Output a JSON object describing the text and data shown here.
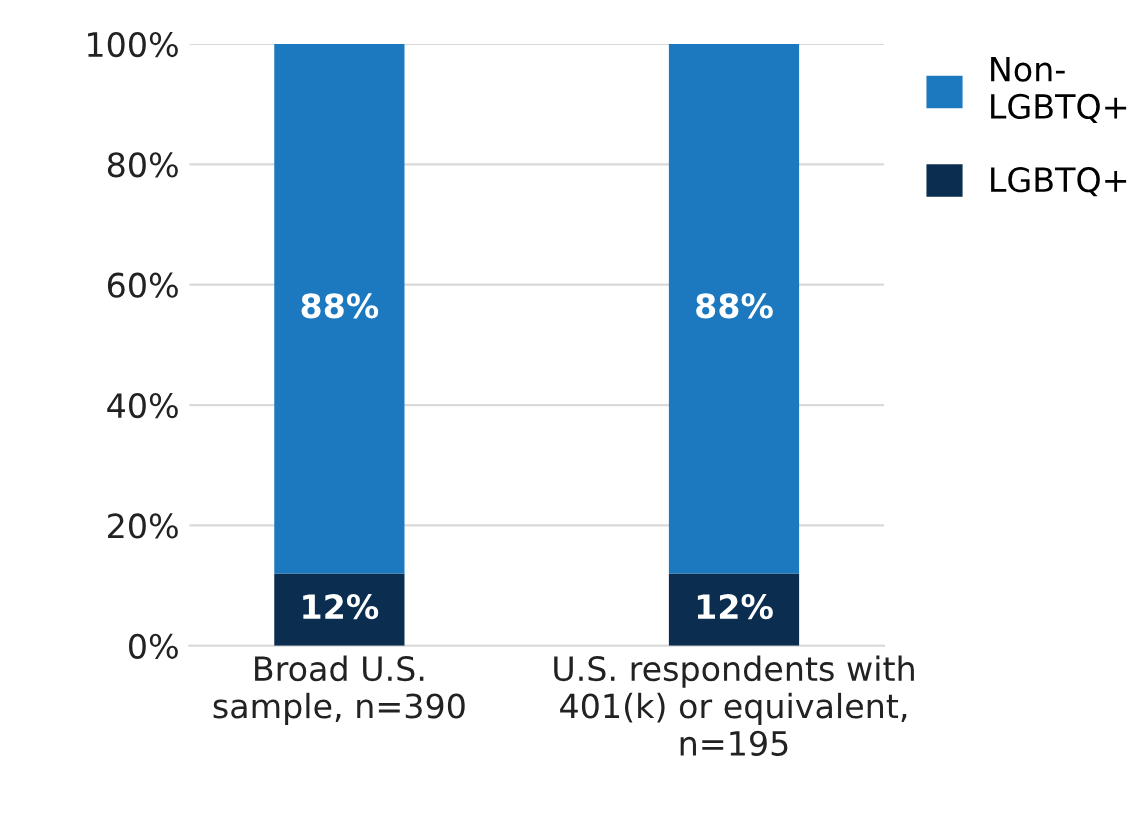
{
  "chart_data": {
    "type": "bar",
    "stacked": true,
    "categories": [
      "Broad U.S.\nsample, n=390",
      "U.S. respondents with\n401(k) or equivalent,\nn=195"
    ],
    "series": [
      {
        "name": "LGBTQ+",
        "color": "#0b2d4f",
        "values": [
          12,
          12
        ],
        "value_labels": [
          "12%",
          "12%"
        ]
      },
      {
        "name": "Non-LGBTQ+",
        "color": "#1c79bf",
        "values": [
          88,
          88
        ],
        "value_labels": [
          "88%",
          "88%"
        ]
      }
    ],
    "ylim": [
      0,
      100
    ],
    "yticks": [
      {
        "value": 0,
        "label": "0%"
      },
      {
        "value": 20,
        "label": "20%"
      },
      {
        "value": 40,
        "label": "40%"
      },
      {
        "value": 60,
        "label": "60%"
      },
      {
        "value": 80,
        "label": "80%"
      },
      {
        "value": 100,
        "label": "100%"
      }
    ],
    "grid": "y",
    "legend": "top right"
  }
}
